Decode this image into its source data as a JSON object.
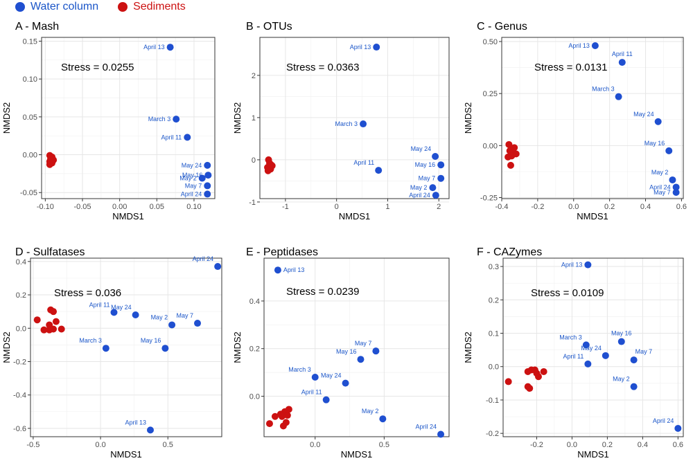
{
  "legend": {
    "water_label": "Water column",
    "sediment_label": "Sediments",
    "water_color": "#1f4fd0",
    "sediment_color": "#cc1111"
  },
  "chart_data": [
    {
      "type": "scatter",
      "title": "A - Mash",
      "xlabel": "NMDS1",
      "ylabel": "NMDS2",
      "stress": "Stress = 0.0255",
      "xlim": [
        -0.105,
        0.128
      ],
      "ylim": [
        -0.058,
        0.155
      ],
      "xticks": [
        -0.1,
        -0.05,
        0.0,
        0.05,
        0.1
      ],
      "xtick_labels": [
        "-0.10",
        "-0.05",
        "0.00",
        "0.05",
        "0.10"
      ],
      "yticks": [
        -0.05,
        0.0,
        0.05,
        0.1,
        0.15
      ],
      "ytick_labels": [
        "-0.05",
        "0.00",
        "0.05",
        "0.10",
        "0.15"
      ],
      "water": [
        {
          "label": "April 13",
          "x": 0.068,
          "y": 0.142
        },
        {
          "label": "March 3",
          "x": 0.076,
          "y": 0.047
        },
        {
          "label": "April 11",
          "x": 0.091,
          "y": 0.023
        },
        {
          "label": "May 24",
          "x": 0.118,
          "y": -0.014
        },
        {
          "label": "May 16",
          "x": 0.119,
          "y": -0.027
        },
        {
          "label": "May 2",
          "x": 0.111,
          "y": -0.031
        },
        {
          "label": "May 7",
          "x": 0.118,
          "y": -0.041
        },
        {
          "label": "April 24",
          "x": 0.118,
          "y": -0.052
        }
      ],
      "sediments": [
        {
          "x": -0.094,
          "y": -0.001
        },
        {
          "x": -0.091,
          "y": -0.003
        },
        {
          "x": -0.093,
          "y": -0.006
        },
        {
          "x": -0.089,
          "y": -0.007
        },
        {
          "x": -0.094,
          "y": -0.009
        },
        {
          "x": -0.091,
          "y": -0.011
        },
        {
          "x": -0.094,
          "y": -0.013
        },
        {
          "x": -0.092,
          "y": -0.004
        }
      ]
    },
    {
      "type": "scatter",
      "title": "B - OTUs",
      "xlabel": "NMDS1",
      "ylabel": "NMDS2",
      "stress": "Stress = 0.0363",
      "xlim": [
        -1.5,
        2.2
      ],
      "ylim": [
        -0.92,
        2.9
      ],
      "xticks": [
        -1,
        0,
        1,
        2
      ],
      "xtick_labels": [
        "-1",
        "0",
        "1",
        "2"
      ],
      "yticks": [
        -1,
        0,
        1,
        2
      ],
      "ytick_labels": [
        "-1",
        "0",
        "1",
        "2"
      ],
      "water": [
        {
          "label": "April 13",
          "x": 0.78,
          "y": 2.67
        },
        {
          "label": "March 3",
          "x": 0.52,
          "y": 0.85
        },
        {
          "label": "May 24",
          "x": 1.93,
          "y": 0.08
        },
        {
          "label": "May 16",
          "x": 2.04,
          "y": -0.12
        },
        {
          "label": "April 11",
          "x": 0.82,
          "y": -0.25
        },
        {
          "label": "May 7",
          "x": 2.04,
          "y": -0.44
        },
        {
          "label": "May 2",
          "x": 1.88,
          "y": -0.66
        },
        {
          "label": "April 24",
          "x": 1.94,
          "y": -0.84
        }
      ],
      "sediments": [
        {
          "x": -1.33,
          "y": 0.0
        },
        {
          "x": -1.31,
          "y": -0.08
        },
        {
          "x": -1.26,
          "y": -0.14
        },
        {
          "x": -1.35,
          "y": -0.18
        },
        {
          "x": -1.29,
          "y": -0.22
        },
        {
          "x": -1.34,
          "y": -0.26
        },
        {
          "x": -1.28,
          "y": -0.12
        }
      ]
    },
    {
      "type": "scatter",
      "title": "C - Genus",
      "xlabel": "NMDS1",
      "ylabel": "NMDS2",
      "stress": "Stress = 0.0131",
      "xlim": [
        -0.4,
        0.61
      ],
      "ylim": [
        -0.255,
        0.52
      ],
      "xticks": [
        -0.4,
        -0.2,
        0.0,
        0.2,
        0.4,
        0.6
      ],
      "xtick_labels": [
        "-0.4",
        "-0.2",
        "0.0",
        "0.2",
        "0.4",
        "0.6"
      ],
      "yticks": [
        -0.25,
        0.0,
        0.25,
        0.5
      ],
      "ytick_labels": [
        "-0.25",
        "0.00",
        "0.25",
        "0.50"
      ],
      "water": [
        {
          "label": "April 13",
          "x": 0.12,
          "y": 0.48
        },
        {
          "label": "April 11",
          "x": 0.27,
          "y": 0.4
        },
        {
          "label": "March 3",
          "x": 0.25,
          "y": 0.235
        },
        {
          "label": "May 24",
          "x": 0.47,
          "y": 0.115
        },
        {
          "label": "May 16",
          "x": 0.53,
          "y": -0.025
        },
        {
          "label": "May 2",
          "x": 0.55,
          "y": -0.165
        },
        {
          "label": "April 24",
          "x": 0.57,
          "y": -0.2
        },
        {
          "label": "May 7",
          "x": 0.57,
          "y": -0.225
        }
      ],
      "sediments": [
        {
          "x": -0.36,
          "y": 0.005
        },
        {
          "x": -0.34,
          "y": -0.02
        },
        {
          "x": -0.355,
          "y": -0.025
        },
        {
          "x": -0.32,
          "y": -0.04
        },
        {
          "x": -0.345,
          "y": -0.05
        },
        {
          "x": -0.365,
          "y": -0.055
        },
        {
          "x": -0.35,
          "y": -0.095
        },
        {
          "x": -0.33,
          "y": -0.01
        }
      ]
    },
    {
      "type": "scatter",
      "title": "D - Sulfatases",
      "xlabel": "NMDS1",
      "ylabel": "NMDS2",
      "stress": "Stress = 0.036",
      "xlim": [
        -0.52,
        0.9
      ],
      "ylim": [
        -0.65,
        0.42
      ],
      "xticks": [
        -0.5,
        0.0,
        0.5
      ],
      "xtick_labels": [
        "-0.5",
        "0.0",
        "0.5"
      ],
      "yticks": [
        -0.6,
        -0.4,
        -0.2,
        0.0,
        0.2,
        0.4
      ],
      "ytick_labels": [
        "-0.6",
        "-0.4",
        "-0.2",
        "0.0",
        "0.2",
        "0.4"
      ],
      "water": [
        {
          "label": "April 24",
          "x": 0.87,
          "y": 0.37
        },
        {
          "label": "April 11",
          "x": 0.1,
          "y": 0.095
        },
        {
          "label": "May 24",
          "x": 0.26,
          "y": 0.08
        },
        {
          "label": "May 2",
          "x": 0.53,
          "y": 0.02
        },
        {
          "label": "May 7",
          "x": 0.72,
          "y": 0.03
        },
        {
          "label": "March 3",
          "x": 0.04,
          "y": -0.12
        },
        {
          "label": "May 16",
          "x": 0.48,
          "y": -0.12
        },
        {
          "label": "April 13",
          "x": 0.37,
          "y": -0.61
        }
      ],
      "sediments": [
        {
          "x": -0.37,
          "y": 0.11
        },
        {
          "x": -0.35,
          "y": 0.1
        },
        {
          "x": -0.47,
          "y": 0.05
        },
        {
          "x": -0.33,
          "y": 0.04
        },
        {
          "x": -0.38,
          "y": 0.02
        },
        {
          "x": -0.42,
          "y": -0.01
        },
        {
          "x": -0.38,
          "y": -0.01
        },
        {
          "x": -0.35,
          "y": -0.005
        },
        {
          "x": -0.29,
          "y": -0.005
        }
      ]
    },
    {
      "type": "scatter",
      "title": "E - Peptidases",
      "xlabel": "NMDS1",
      "ylabel": "NMDS2",
      "stress": "Stress = 0.0239",
      "xlim": [
        -0.37,
        0.97
      ],
      "ylim": [
        -0.17,
        0.58
      ],
      "xticks": [
        0.0,
        0.5
      ],
      "xtick_labels": [
        "0.0",
        "0.5"
      ],
      "yticks": [
        0.0,
        0.2,
        0.4
      ],
      "ytick_labels": [
        "0.0",
        "0.2",
        "0.4"
      ],
      "water": [
        {
          "label": "April 13",
          "x": -0.27,
          "y": 0.53
        },
        {
          "label": "May 7",
          "x": 0.44,
          "y": 0.19
        },
        {
          "label": "May 16",
          "x": 0.33,
          "y": 0.155
        },
        {
          "label": "March 3",
          "x": 0.0,
          "y": 0.08
        },
        {
          "label": "May 24",
          "x": 0.22,
          "y": 0.055
        },
        {
          "label": "April 11",
          "x": 0.08,
          "y": -0.015
        },
        {
          "label": "May 2",
          "x": 0.49,
          "y": -0.095
        },
        {
          "label": "April 24",
          "x": 0.91,
          "y": -0.16
        }
      ],
      "sediments": [
        {
          "x": -0.19,
          "y": -0.055
        },
        {
          "x": -0.22,
          "y": -0.065
        },
        {
          "x": -0.25,
          "y": -0.075
        },
        {
          "x": -0.29,
          "y": -0.085
        },
        {
          "x": -0.24,
          "y": -0.085
        },
        {
          "x": -0.2,
          "y": -0.08
        },
        {
          "x": -0.33,
          "y": -0.115
        },
        {
          "x": -0.21,
          "y": -0.11
        },
        {
          "x": -0.23,
          "y": -0.125
        }
      ]
    },
    {
      "type": "scatter",
      "title": "F - CAZymes",
      "xlabel": "NMDS1",
      "ylabel": "NMDS2",
      "stress": "Stress = 0.0109",
      "xlim": [
        -0.39,
        0.63
      ],
      "ylim": [
        -0.21,
        0.325
      ],
      "xticks": [
        -0.2,
        0.0,
        0.2,
        0.4,
        0.6
      ],
      "xtick_labels": [
        "-0.2",
        "0.0",
        "0.2",
        "0.4",
        "0.6"
      ],
      "yticks": [
        -0.2,
        -0.1,
        0.0,
        0.1,
        0.2,
        0.3
      ],
      "ytick_labels": [
        "-0.2",
        "-0.1",
        "0.0",
        "0.1",
        "0.2",
        "0.3"
      ],
      "water": [
        {
          "label": "April 13",
          "x": 0.09,
          "y": 0.305
        },
        {
          "label": "March 3",
          "x": 0.08,
          "y": 0.065
        },
        {
          "label": "May 16",
          "x": 0.28,
          "y": 0.075
        },
        {
          "label": "May 24",
          "x": 0.19,
          "y": 0.033
        },
        {
          "label": "May 7",
          "x": 0.35,
          "y": 0.02
        },
        {
          "label": "April 11",
          "x": 0.09,
          "y": 0.008
        },
        {
          "label": "May 2",
          "x": 0.35,
          "y": -0.06
        },
        {
          "label": "April 24",
          "x": 0.6,
          "y": -0.185
        }
      ],
      "sediments": [
        {
          "x": -0.23,
          "y": -0.01
        },
        {
          "x": -0.21,
          "y": -0.01
        },
        {
          "x": -0.25,
          "y": -0.015
        },
        {
          "x": -0.16,
          "y": -0.015
        },
        {
          "x": -0.2,
          "y": -0.02
        },
        {
          "x": -0.19,
          "y": -0.03
        },
        {
          "x": -0.36,
          "y": -0.045
        },
        {
          "x": -0.25,
          "y": -0.06
        },
        {
          "x": -0.24,
          "y": -0.065
        }
      ]
    }
  ]
}
